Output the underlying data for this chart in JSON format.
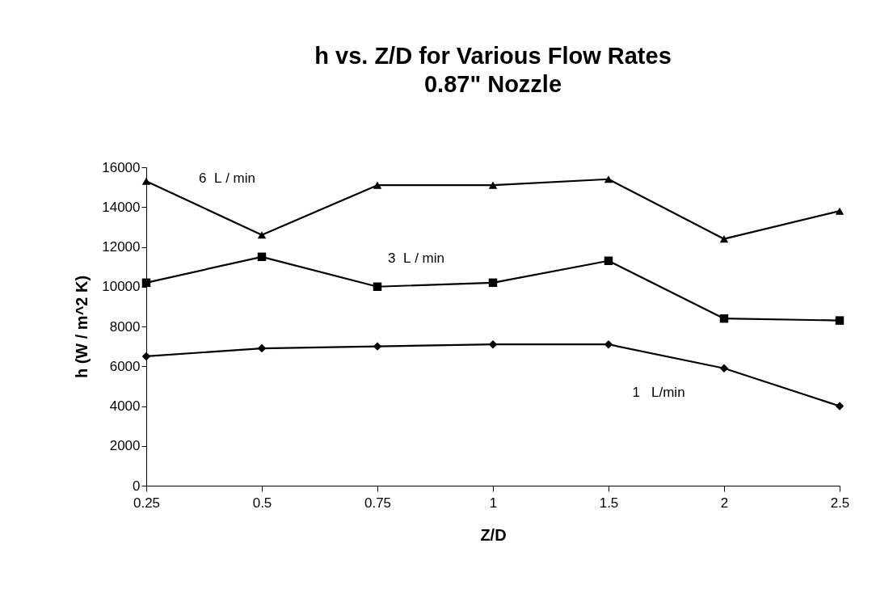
{
  "chart_data": {
    "type": "line",
    "title": "h vs. Z/D for Various Flow Rates",
    "subtitle": "0.87\" Nozzle",
    "xlabel": "Z/D",
    "ylabel": "h (W / m^2 K)",
    "categories": [
      "0.25",
      "0.5",
      "0.75",
      "1",
      "1.5",
      "2",
      "2.5"
    ],
    "series": [
      {
        "name": "1   L/min",
        "color": "#000000",
        "marker": "diamond",
        "values": [
          6500,
          6900,
          7000,
          7100,
          7100,
          5900,
          4000
        ]
      },
      {
        "name": "3  L / min",
        "color": "#000000",
        "marker": "square",
        "values": [
          10200,
          11500,
          10000,
          10200,
          11300,
          8400,
          8300
        ]
      },
      {
        "name": "6  L / min",
        "color": "#000000",
        "marker": "triangle",
        "values": [
          15300,
          12600,
          15100,
          15100,
          15400,
          12400,
          13800
        ]
      }
    ],
    "ylim": [
      0,
      16000
    ],
    "yticks": [
      0,
      2000,
      4000,
      6000,
      8000,
      10000,
      12000,
      14000,
      16000
    ],
    "line_style": "solid"
  }
}
